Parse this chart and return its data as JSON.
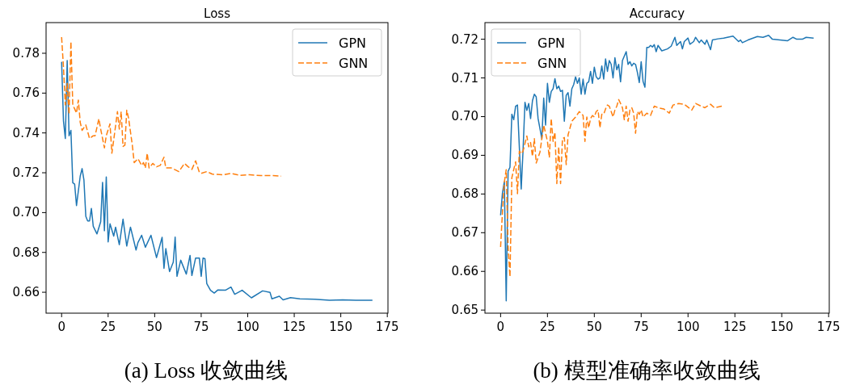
{
  "chart_data": [
    {
      "type": "line",
      "title": "Loss",
      "annotations": [
        "(a) Loss 收敛曲线"
      ],
      "xlim": [
        -8.35,
        175.35
      ],
      "ylim": [
        0.6495,
        0.7954
      ],
      "xticks": [
        0,
        25,
        50,
        75,
        100,
        125,
        150,
        175
      ],
      "yticks": [
        {
          "value": 0.66,
          "label": "0.66"
        },
        {
          "value": 0.68,
          "label": "0.68"
        },
        {
          "value": 0.7,
          "label": "0.70"
        },
        {
          "value": 0.72,
          "label": "0.72"
        },
        {
          "value": 0.74,
          "label": "0.74"
        },
        {
          "value": 0.76,
          "label": "0.76"
        },
        {
          "value": 0.78,
          "label": "0.78"
        }
      ],
      "grid": false,
      "legend": "top right",
      "series": [
        {
          "name": "GPN",
          "color": "#1f77b4",
          "line_style": "solid",
          "x": [
            0,
            1,
            2,
            3,
            4,
            5,
            6,
            7,
            8,
            10,
            11,
            12,
            13,
            14,
            15,
            16,
            17,
            19,
            21,
            22,
            23,
            24,
            25,
            26,
            28,
            29,
            31,
            33,
            35,
            37,
            40,
            41,
            43,
            45,
            48,
            51,
            54,
            55,
            56,
            58,
            60,
            61,
            62,
            64,
            67,
            69,
            70,
            72,
            74,
            75,
            76,
            77,
            78,
            80,
            82,
            84,
            88,
            91,
            93,
            97,
            102,
            108,
            112,
            113,
            117,
            119,
            123,
            128,
            136,
            144,
            151,
            158,
            167
          ],
          "values": [
            0.7757,
            0.746,
            0.7372,
            0.7764,
            0.7386,
            0.7413,
            0.715,
            0.7143,
            0.7035,
            0.7183,
            0.7221,
            0.7163,
            0.6981,
            0.6958,
            0.6958,
            0.7021,
            0.6931,
            0.6893,
            0.6954,
            0.7152,
            0.6909,
            0.7179,
            0.6853,
            0.6944,
            0.6882,
            0.6927,
            0.6839,
            0.6967,
            0.6832,
            0.6927,
            0.6812,
            0.6849,
            0.6886,
            0.6826,
            0.6886,
            0.6774,
            0.6876,
            0.672,
            0.6819,
            0.6704,
            0.6751,
            0.6877,
            0.668,
            0.6761,
            0.6691,
            0.6785,
            0.6684,
            0.6772,
            0.6772,
            0.668,
            0.6772,
            0.6769,
            0.6643,
            0.661,
            0.6596,
            0.6612,
            0.661,
            0.6626,
            0.659,
            0.661,
            0.6572,
            0.6607,
            0.6599,
            0.6567,
            0.658,
            0.6562,
            0.6573,
            0.6567,
            0.6565,
            0.656,
            0.6562,
            0.656,
            0.656
          ]
        },
        {
          "name": "GNN",
          "color": "#ff7f0e",
          "line_style": "dashed",
          "x": [
            0,
            1,
            2,
            3,
            4,
            5,
            6,
            7,
            8,
            9,
            10,
            11,
            13,
            15,
            17,
            18,
            20,
            21,
            23,
            24,
            26,
            27,
            28,
            30,
            31,
            32,
            33,
            34,
            35,
            36,
            38,
            39,
            41,
            43,
            44,
            45,
            46,
            47,
            49,
            51,
            53,
            55,
            56,
            59,
            63,
            66,
            68,
            70,
            72,
            74,
            75,
            78,
            81,
            87,
            91,
            96,
            101,
            107,
            113,
            118
          ],
          "values": [
            0.7881,
            0.773,
            0.7541,
            0.7649,
            0.7494,
            0.7858,
            0.7541,
            0.7521,
            0.75,
            0.7565,
            0.7453,
            0.7413,
            0.744,
            0.7372,
            0.7386,
            0.7386,
            0.7471,
            0.7419,
            0.7325,
            0.7386,
            0.7446,
            0.7298,
            0.7365,
            0.7507,
            0.7419,
            0.7507,
            0.7332,
            0.7338,
            0.7514,
            0.7473,
            0.7338,
            0.7251,
            0.7271,
            0.7237,
            0.7251,
            0.7224,
            0.7298,
            0.7224,
            0.7247,
            0.723,
            0.7237,
            0.7278,
            0.7224,
            0.7224,
            0.7206,
            0.7247,
            0.723,
            0.7217,
            0.726,
            0.7203,
            0.7197,
            0.7206,
            0.7193,
            0.719,
            0.7197,
            0.7187,
            0.719,
            0.7186,
            0.7186,
            0.7183
          ]
        }
      ]
    },
    {
      "type": "line",
      "title": "Accuracy",
      "annotations": [
        "(b) 模型准确率收敛曲线"
      ],
      "xlim": [
        -8.35,
        175.35
      ],
      "ylim": [
        0.6492,
        0.7243
      ],
      "xticks": [
        0,
        25,
        50,
        75,
        100,
        125,
        150,
        175
      ],
      "yticks": [
        {
          "value": 0.65,
          "label": "0.65"
        },
        {
          "value": 0.66,
          "label": "0.66"
        },
        {
          "value": 0.67,
          "label": "0.67"
        },
        {
          "value": 0.68,
          "label": "0.68"
        },
        {
          "value": 0.69,
          "label": "0.69"
        },
        {
          "value": 0.7,
          "label": "0.70"
        },
        {
          "value": 0.71,
          "label": "0.71"
        },
        {
          "value": 0.72,
          "label": "0.72"
        }
      ],
      "grid": false,
      "legend": "top left",
      "series": [
        {
          "name": "GPN",
          "color": "#1f77b4",
          "line_style": "solid",
          "x": [
            0,
            1,
            2,
            3,
            4,
            5,
            6,
            7,
            8,
            9,
            11,
            12,
            13,
            14,
            15,
            16,
            17,
            18,
            19,
            20,
            22,
            23,
            24,
            25,
            26,
            27,
            28,
            29,
            30,
            31,
            32,
            33,
            34,
            35,
            36,
            37,
            38,
            39,
            40,
            41,
            42,
            43,
            44,
            45,
            46,
            47,
            48,
            49,
            50,
            51,
            52,
            53,
            54,
            55,
            56,
            57,
            58,
            59,
            60,
            61,
            62,
            63,
            64,
            65,
            67,
            68,
            69,
            70,
            71,
            72,
            73,
            74,
            75,
            76,
            77,
            78,
            79,
            80,
            81,
            82,
            83,
            84,
            86,
            89,
            91,
            93,
            94,
            96,
            97,
            98,
            100,
            101,
            103,
            104,
            106,
            107,
            109,
            110,
            112,
            113,
            116,
            119,
            123,
            124,
            127,
            128,
            129,
            132,
            137,
            140,
            143,
            145,
            149,
            153,
            156,
            158,
            161,
            163,
            167
          ],
          "values": [
            0.6745,
            0.6803,
            0.6832,
            0.6524,
            0.6859,
            0.6869,
            0.7006,
            0.6992,
            0.7027,
            0.703,
            0.6813,
            0.6915,
            0.7037,
            0.7016,
            0.7034,
            0.6995,
            0.7041,
            0.7058,
            0.7051,
            0.6995,
            0.6943,
            0.7048,
            0.6978,
            0.7086,
            0.7037,
            0.7065,
            0.7072,
            0.7098,
            0.7072,
            0.7079,
            0.7065,
            0.7068,
            0.6988,
            0.7055,
            0.7062,
            0.7027,
            0.7072,
            0.7083,
            0.7103,
            0.7086,
            0.71,
            0.7058,
            0.7097,
            0.7058,
            0.7086,
            0.709,
            0.7117,
            0.7086,
            0.7128,
            0.7103,
            0.7097,
            0.71,
            0.7131,
            0.7097,
            0.7149,
            0.7117,
            0.7145,
            0.7135,
            0.71,
            0.7152,
            0.7121,
            0.7135,
            0.709,
            0.7145,
            0.7168,
            0.7135,
            0.7142,
            0.7131,
            0.7138,
            0.7135,
            0.7114,
            0.7088,
            0.7142,
            0.7091,
            0.7076,
            0.7179,
            0.7179,
            0.7184,
            0.718,
            0.7186,
            0.7168,
            0.7184,
            0.717,
            0.7175,
            0.7182,
            0.7205,
            0.7184,
            0.7194,
            0.7175,
            0.7194,
            0.7203,
            0.7187,
            0.7194,
            0.7205,
            0.7191,
            0.7198,
            0.7187,
            0.7198,
            0.7173,
            0.7198,
            0.7201,
            0.7203,
            0.7207,
            0.7208,
            0.7194,
            0.7198,
            0.7191,
            0.7198,
            0.7207,
            0.7205,
            0.721,
            0.72,
            0.7198,
            0.7196,
            0.7205,
            0.72,
            0.72,
            0.7205,
            0.7203
          ]
        },
        {
          "name": "GNN",
          "color": "#ff7f0e",
          "line_style": "dashed",
          "x": [
            0,
            1,
            2,
            3,
            4,
            5,
            6,
            7,
            8,
            9,
            10,
            11,
            12,
            14,
            15,
            16,
            17,
            18,
            19,
            21,
            22,
            23,
            24,
            25,
            26,
            27,
            28,
            29,
            30,
            31,
            32,
            33,
            34,
            35,
            36,
            38,
            40,
            42,
            44,
            45,
            46,
            47,
            48,
            49,
            50,
            51,
            52,
            53,
            54,
            55,
            56,
            57,
            58,
            60,
            61,
            62,
            63,
            64,
            65,
            66,
            67,
            68,
            69,
            70,
            71,
            72,
            73,
            74,
            75,
            76,
            78,
            80,
            82,
            84,
            87,
            90,
            92,
            95,
            98,
            102,
            104,
            107,
            109,
            112,
            114,
            118
          ],
          "values": [
            0.6663,
            0.6754,
            0.6831,
            0.6863,
            0.6663,
            0.6586,
            0.6842,
            0.6863,
            0.6883,
            0.6801,
            0.6911,
            0.6904,
            0.6911,
            0.695,
            0.6922,
            0.6933,
            0.6897,
            0.6943,
            0.688,
            0.6908,
            0.6943,
            0.6978,
            0.6957,
            0.6936,
            0.6894,
            0.6995,
            0.6936,
            0.696,
            0.6827,
            0.6922,
            0.6827,
            0.6943,
            0.6946,
            0.6876,
            0.6953,
            0.6988,
            0.6999,
            0.7013,
            0.7003,
            0.6936,
            0.6999,
            0.6971,
            0.6995,
            0.7003,
            0.6999,
            0.7013,
            0.7017,
            0.6971,
            0.7006,
            0.7006,
            0.702,
            0.703,
            0.7027,
            0.6999,
            0.7017,
            0.7027,
            0.7044,
            0.7034,
            0.7023,
            0.6992,
            0.7027,
            0.6988,
            0.7017,
            0.7023,
            0.7009,
            0.6957,
            0.7013,
            0.7006,
            0.7017,
            0.6999,
            0.7009,
            0.7003,
            0.7027,
            0.7023,
            0.702,
            0.7009,
            0.703,
            0.7034,
            0.7032,
            0.7017,
            0.7034,
            0.7027,
            0.7023,
            0.7032,
            0.7023,
            0.7027
          ]
        }
      ]
    }
  ]
}
